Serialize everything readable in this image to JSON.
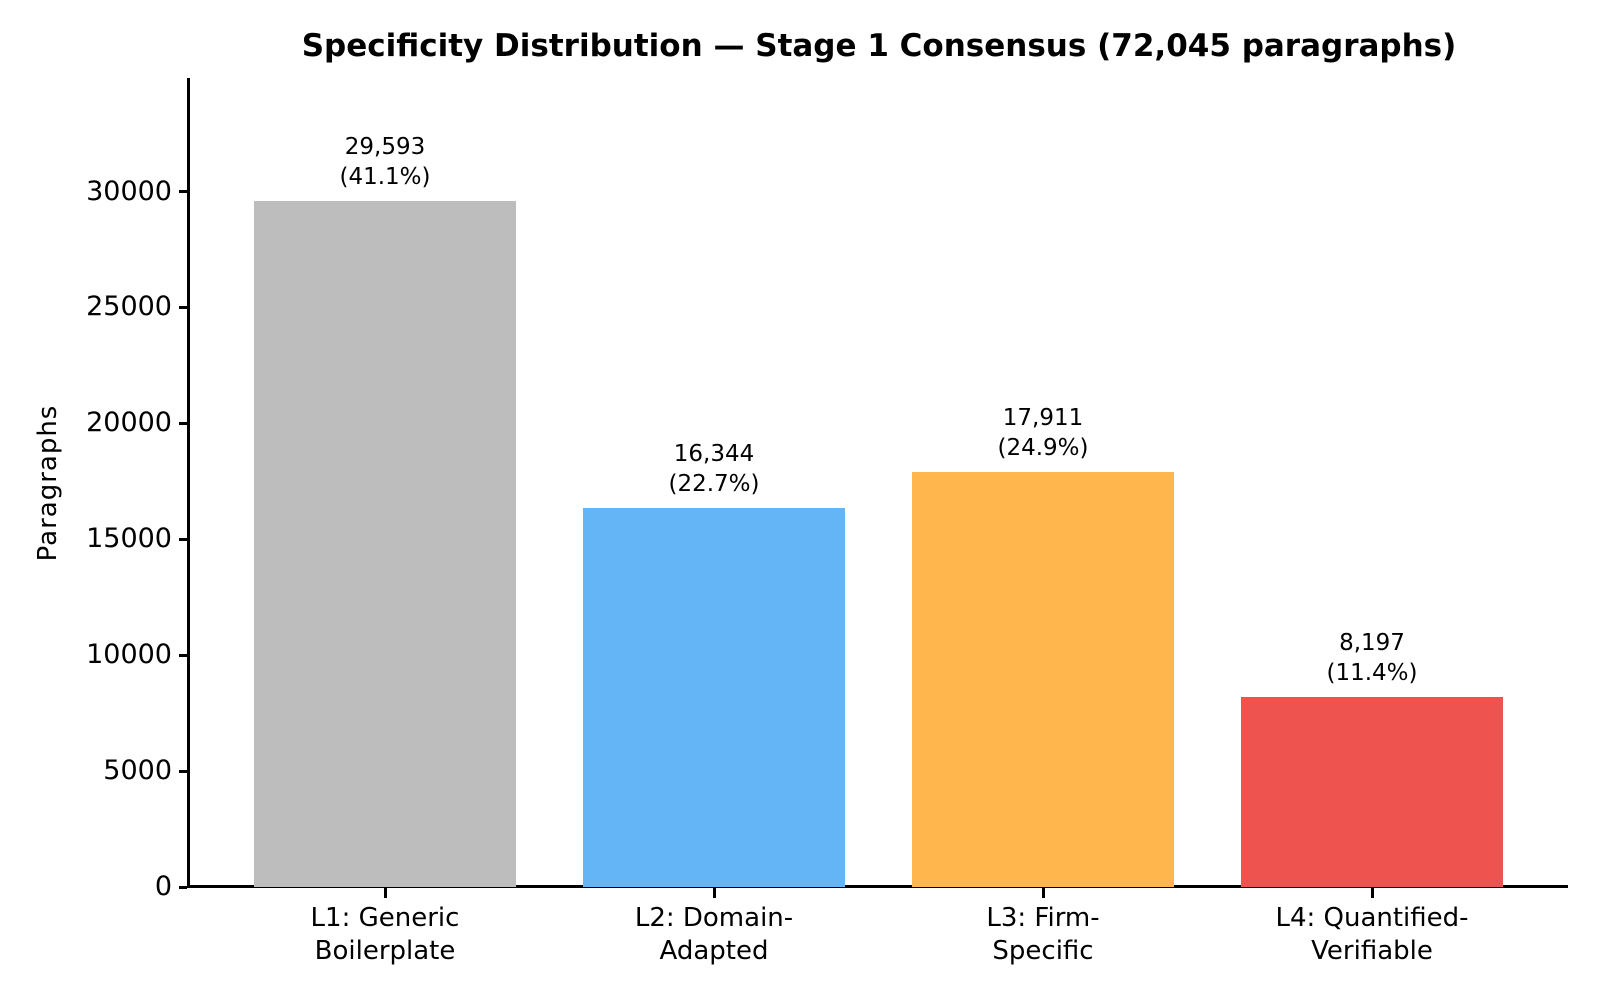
{
  "chart_data": {
    "type": "bar",
    "title": "Specificity Distribution — Stage 1 Consensus (72,045 paragraphs)",
    "total_paragraphs": "72,045",
    "xlabel": "",
    "ylabel": "Paragraphs",
    "categories": [
      "L1: Generic\nBoilerplate",
      "L2: Domain-\nAdapted",
      "L3: Firm-\nSpecific",
      "L4: Quantified-\nVerifiable"
    ],
    "values": [
      29593,
      16344,
      17911,
      8197
    ],
    "percentages": [
      41.1,
      22.7,
      24.9,
      11.4
    ],
    "bar_labels": [
      "29,593\n(41.1%)",
      "16,344\n(22.7%)",
      "17,911\n(24.9%)",
      "8,197\n(11.4%)"
    ],
    "bar_colors": [
      "#BDBDBD",
      "#64B5F6",
      "#FFB74D",
      "#EF5350"
    ],
    "yticks": [
      0,
      5000,
      10000,
      15000,
      20000,
      25000,
      30000
    ],
    "ylim": [
      0,
      34900
    ],
    "grid": false,
    "legend": false,
    "axis_color": "#000000",
    "background_color": "#ffffff"
  }
}
